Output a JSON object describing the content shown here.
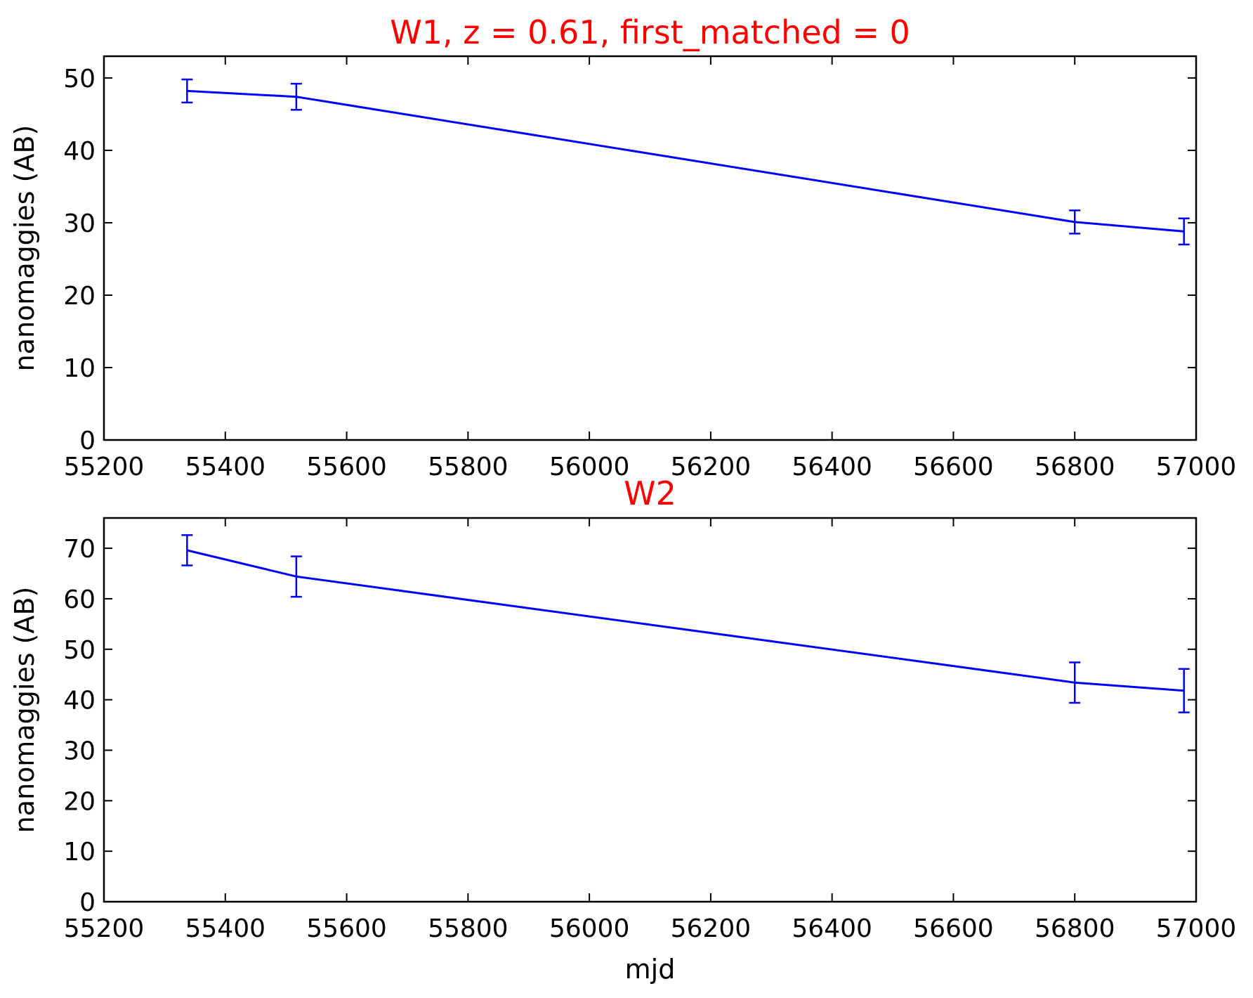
{
  "figure": {
    "xlabel": "mjd"
  },
  "colors": {
    "title": "#ff0000",
    "series": "#0000ff",
    "axes": "#000000",
    "background": "#ffffff"
  },
  "chart_data": [
    {
      "type": "line",
      "title": "W1, z = 0.61, first_matched = 0",
      "xlabel": "",
      "ylabel": "nanomaggies (AB)",
      "xlim": [
        55200,
        57000
      ],
      "ylim": [
        0,
        53
      ],
      "xticks": [
        55200,
        55400,
        55600,
        55800,
        56000,
        56200,
        56400,
        56600,
        56800,
        57000
      ],
      "yticks": [
        0,
        10,
        20,
        30,
        40,
        50
      ],
      "grid": false,
      "series": [
        {
          "x": [
            55337,
            55517,
            56800,
            56980
          ],
          "y": [
            48.2,
            47.4,
            30.1,
            28.8
          ],
          "yerr": [
            1.6,
            1.8,
            1.6,
            1.8
          ]
        }
      ]
    },
    {
      "type": "line",
      "title": "W2",
      "xlabel": "mjd",
      "ylabel": "nanomaggies (AB)",
      "xlim": [
        55200,
        57000
      ],
      "ylim": [
        0,
        76
      ],
      "xticks": [
        55200,
        55400,
        55600,
        55800,
        56000,
        56200,
        56400,
        56600,
        56800,
        57000
      ],
      "yticks": [
        0,
        10,
        20,
        30,
        40,
        50,
        60,
        70
      ],
      "grid": false,
      "series": [
        {
          "x": [
            55337,
            55517,
            56800,
            56980
          ],
          "y": [
            69.6,
            64.4,
            43.4,
            41.8
          ],
          "yerr": [
            3.0,
            4.0,
            4.0,
            4.3
          ]
        }
      ]
    }
  ]
}
